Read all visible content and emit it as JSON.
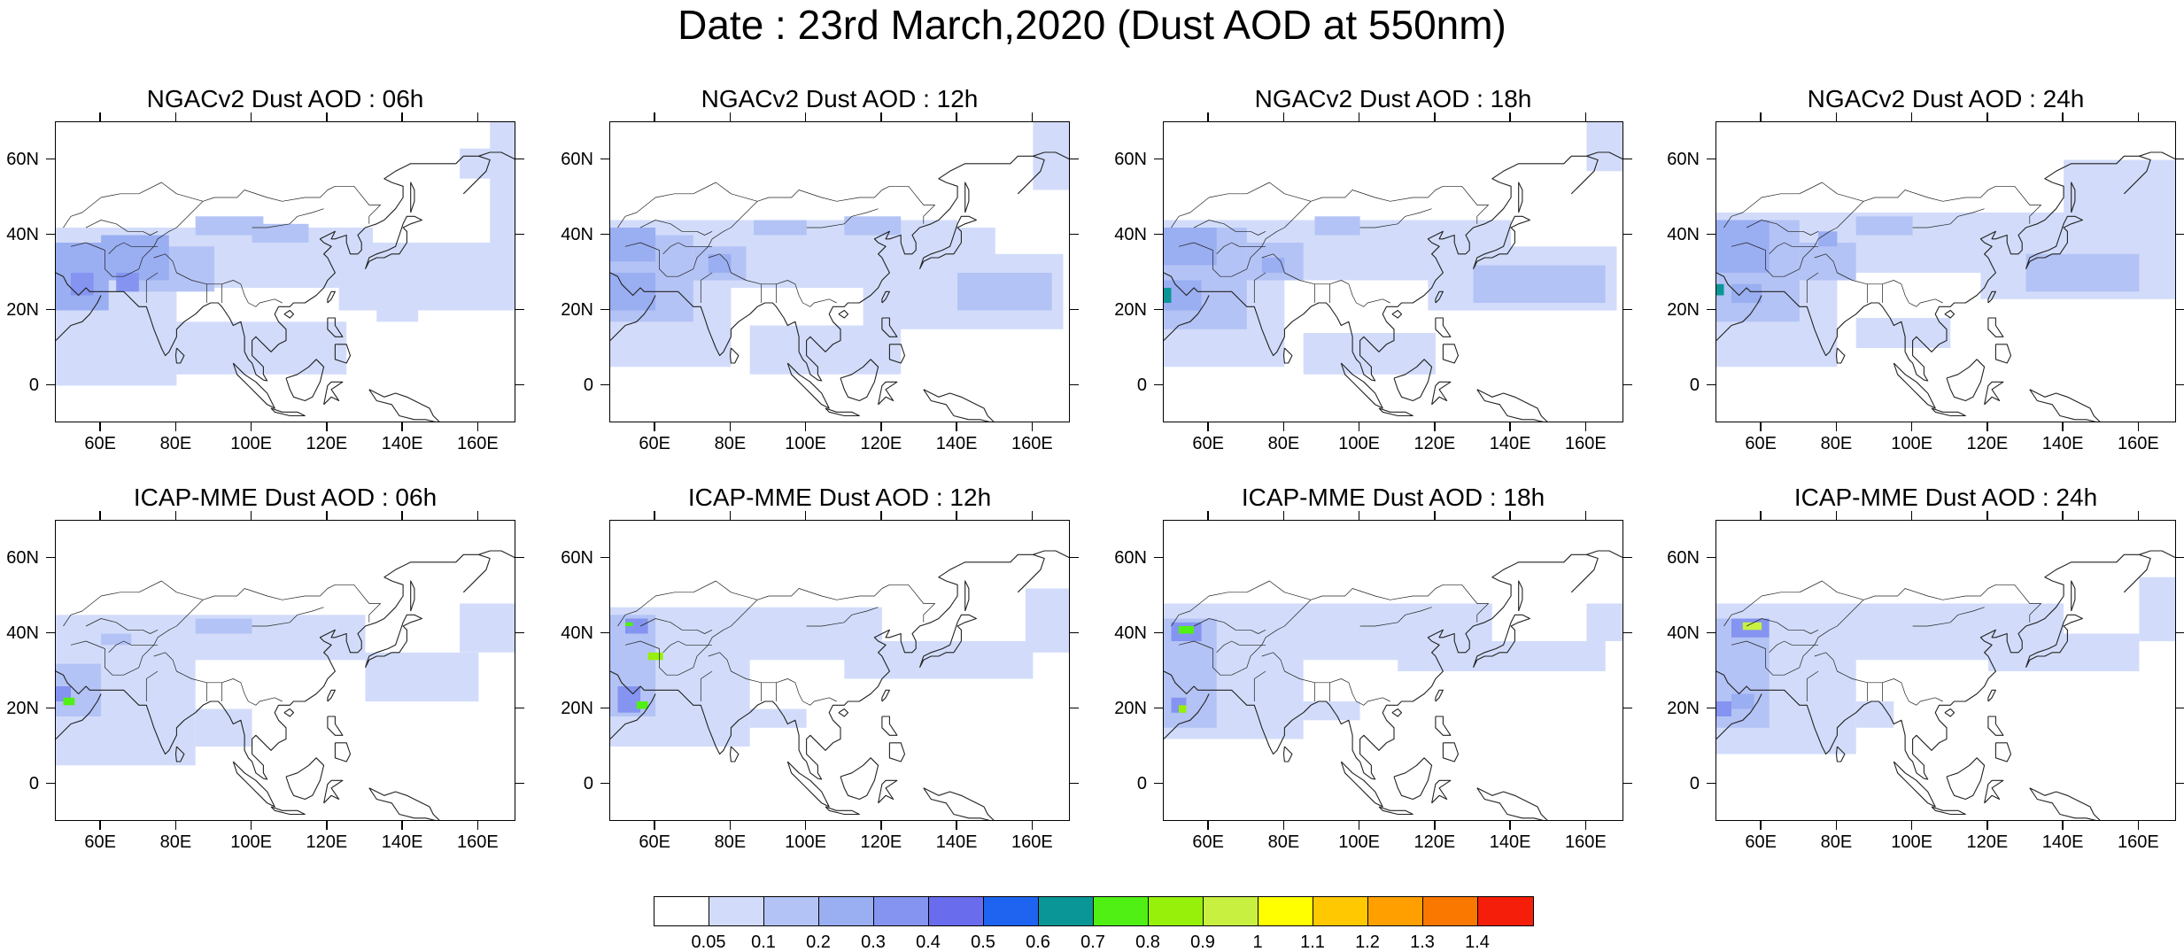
{
  "figure": {
    "title": "Date : 23rd March,2020 (Dust AOD at 550nm)"
  },
  "axes": {
    "lon_range": [
      48,
      170
    ],
    "lat_range": [
      -10,
      70
    ],
    "lat_ticks": [
      "60N",
      "40N",
      "20N",
      "0"
    ],
    "lat_tick_values": [
      60,
      40,
      20,
      0
    ],
    "lon_ticks": [
      "60E",
      "80E",
      "100E",
      "120E",
      "140E",
      "160E"
    ],
    "lon_tick_values": [
      60,
      80,
      100,
      120,
      140,
      160
    ]
  },
  "panels": [
    {
      "title": "NGACv2 Dust AOD : 06h",
      "model": "NGACv2",
      "hour": 6
    },
    {
      "title": "NGACv2 Dust AOD : 12h",
      "model": "NGACv2",
      "hour": 12
    },
    {
      "title": "NGACv2 Dust AOD : 18h",
      "model": "NGACv2",
      "hour": 18
    },
    {
      "title": "NGACv2 Dust AOD : 24h",
      "model": "NGACv2",
      "hour": 24
    },
    {
      "title": "ICAP-MME Dust AOD : 06h",
      "model": "ICAP-MME",
      "hour": 6
    },
    {
      "title": "ICAP-MME Dust AOD : 12h",
      "model": "ICAP-MME",
      "hour": 12
    },
    {
      "title": "ICAP-MME Dust AOD : 18h",
      "model": "ICAP-MME",
      "hour": 18
    },
    {
      "title": "ICAP-MME Dust AOD : 24h",
      "model": "ICAP-MME",
      "hour": 24
    }
  ],
  "colorbar": {
    "labels": [
      "0.05",
      "0.1",
      "0.2",
      "0.3",
      "0.4",
      "0.5",
      "0.6",
      "0.7",
      "0.8",
      "0.9",
      "1",
      "1.1",
      "1.2",
      "1.3",
      "1.4"
    ],
    "colors": [
      "#ffffff",
      "#d2dcfa",
      "#b4c3f5",
      "#9aaef2",
      "#8494f0",
      "#6a6cee",
      "#1e64f0",
      "#0a9696",
      "#50f014",
      "#96f00a",
      "#c8f040",
      "#ffff00",
      "#ffc800",
      "#ffa000",
      "#fa7800",
      "#f51e0a"
    ]
  }
}
